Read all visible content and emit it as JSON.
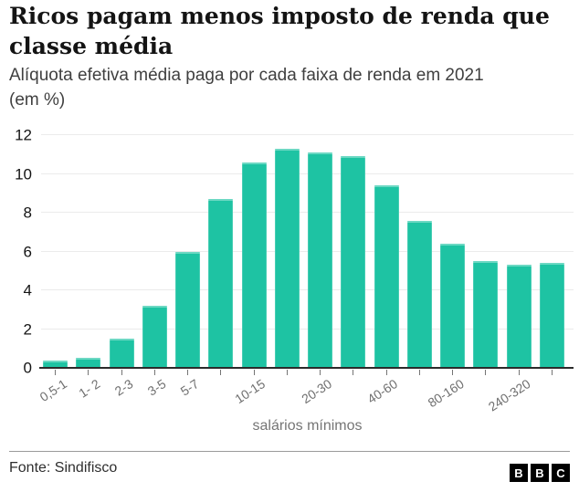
{
  "header": {
    "title": "Ricos pagam menos imposto de renda que classe média",
    "subtitle": "Alíquota efetiva média paga por cada faixa de renda em 2021 (em %)"
  },
  "chart_data": {
    "type": "bar",
    "title": "Ricos pagam menos imposto de renda que classe média",
    "subtitle": "Alíquota efetiva média paga por cada faixa de renda em 2021 (em %)",
    "values": [
      0.4,
      0.5,
      1.5,
      3.2,
      6.0,
      8.7,
      10.6,
      11.3,
      11.1,
      10.9,
      9.4,
      7.6,
      6.4,
      5.5,
      5.3,
      5.4
    ],
    "bar_count": 16,
    "x_tick_labels": [
      {
        "bar_index": 0,
        "label": "0,5-1"
      },
      {
        "bar_index": 1,
        "label": "1- 2"
      },
      {
        "bar_index": 2,
        "label": "2-3"
      },
      {
        "bar_index": 3,
        "label": "3-5"
      },
      {
        "bar_index": 4,
        "label": "5-7"
      },
      {
        "bar_index": 6,
        "label": "10-15"
      },
      {
        "bar_index": 8,
        "label": "20-30"
      },
      {
        "bar_index": 10,
        "label": "40-60"
      },
      {
        "bar_index": 12,
        "label": "80-160"
      },
      {
        "bar_index": 14,
        "label": "240-320"
      }
    ],
    "xlabel": "salários mínimos",
    "ylabel": "",
    "y_ticks": [
      0,
      2,
      4,
      6,
      8,
      10,
      12
    ],
    "ylim": [
      0,
      12
    ],
    "grid": "horizontal",
    "legend": "none",
    "bar_color": "#1ec3a3"
  },
  "footer": {
    "source": "Fonte: Sindifisco",
    "logo_blocks": [
      "B",
      "B",
      "C"
    ]
  }
}
